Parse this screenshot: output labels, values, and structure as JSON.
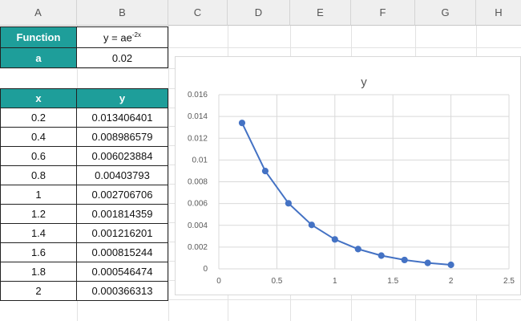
{
  "columns": [
    "A",
    "B",
    "C",
    "D",
    "E",
    "F",
    "G",
    "H"
  ],
  "function_label": "Function",
  "function_value": "y = ae",
  "function_exponent": "-2x",
  "a_label": "a",
  "a_value": "0.02",
  "table": {
    "headers": [
      "x",
      "y"
    ],
    "rows": [
      [
        "0.2",
        "0.013406401"
      ],
      [
        "0.4",
        "0.008986579"
      ],
      [
        "0.6",
        "0.006023884"
      ],
      [
        "0.8",
        "0.00403793"
      ],
      [
        "1",
        "0.002706706"
      ],
      [
        "1.2",
        "0.001814359"
      ],
      [
        "1.4",
        "0.001216201"
      ],
      [
        "1.6",
        "0.000815244"
      ],
      [
        "1.8",
        "0.000546474"
      ],
      [
        "2",
        "0.000366313"
      ]
    ]
  },
  "chart_data": {
    "type": "line",
    "title": "y",
    "x": [
      0.2,
      0.4,
      0.6,
      0.8,
      1,
      1.2,
      1.4,
      1.6,
      1.8,
      2
    ],
    "series": [
      {
        "values": [
          0.013406401,
          0.008986579,
          0.006023884,
          0.00403793,
          0.002706706,
          0.001814359,
          0.001216201,
          0.000815244,
          0.000546474,
          0.000366313
        ]
      }
    ],
    "xlim": [
      0,
      2.5
    ],
    "ylim": [
      0,
      0.016
    ],
    "xticks": [
      "0",
      "0.5",
      "1",
      "1.5",
      "2",
      "2.5"
    ],
    "yticks": [
      "0",
      "0.002",
      "0.004",
      "0.006",
      "0.008",
      "0.01",
      "0.012",
      "0.014",
      "0.016"
    ],
    "grid": true,
    "color": "#4472c4"
  }
}
